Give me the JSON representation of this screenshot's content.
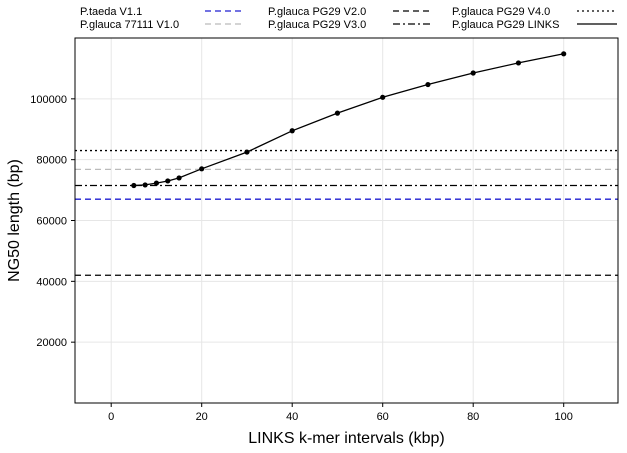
{
  "chart_data": {
    "type": "line",
    "title": "",
    "xlabel": "LINKS k-mer intervals (kbp)",
    "ylabel": "NG50 length (bp)",
    "xlim": [
      -8,
      112
    ],
    "ylim": [
      0,
      120000
    ],
    "xticks": [
      0,
      20,
      40,
      60,
      80,
      100
    ],
    "yticks": [
      20000,
      40000,
      60000,
      80000,
      100000
    ],
    "xtick_labels": [
      "0",
      "20",
      "40",
      "60",
      "80",
      "100"
    ],
    "ytick_labels": [
      "20000",
      "40000",
      "60000",
      "80000",
      "100000"
    ],
    "grid": true,
    "legend_position": "top",
    "reference_lines": [
      {
        "name": "P.taeda V1.1",
        "y": 67000,
        "color": "#1f1fd0",
        "dash": "dashed"
      },
      {
        "name": "P.glauca 77111 V1.0",
        "y": 76800,
        "color": "#bbbbbb",
        "dash": "dashed"
      },
      {
        "name": "P.glauca PG29 V2.0",
        "y": 42000,
        "color": "#000000",
        "dash": "dashed"
      },
      {
        "name": "P.glauca PG29 V3.0",
        "y": 71500,
        "color": "#000000",
        "dash": "dashdot"
      },
      {
        "name": "P.glauca PG29 V4.0",
        "y": 83000,
        "color": "#000000",
        "dash": "dotted"
      }
    ],
    "series": [
      {
        "name": "P.glauca PG29 LINKS",
        "color": "#000000",
        "x": [
          5,
          7.5,
          10,
          12.5,
          15,
          20,
          30,
          40,
          50,
          60,
          70,
          80,
          90,
          100
        ],
        "y": [
          71500,
          71700,
          72300,
          73000,
          74000,
          77000,
          82500,
          89500,
          95300,
          100500,
          104700,
          108500,
          111800,
          114800
        ]
      }
    ]
  }
}
